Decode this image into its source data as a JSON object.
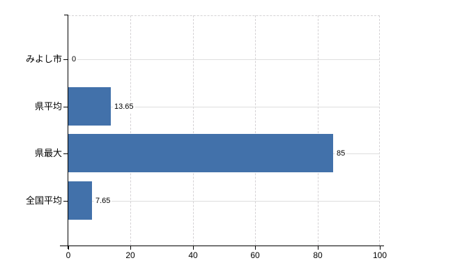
{
  "chart_data": {
    "type": "bar",
    "orientation": "horizontal",
    "title": "",
    "xlabel": "",
    "ylabel": "",
    "categories": [
      "みよし市",
      "県平均",
      "県最大",
      "全国平均"
    ],
    "values": [
      0,
      13.65,
      85,
      7.65
    ],
    "value_labels": [
      "0",
      "13.65",
      "85",
      "7.65"
    ],
    "xlim": [
      0,
      100
    ],
    "x_ticks": [
      "0",
      "20",
      "40",
      "60",
      "80",
      "100"
    ],
    "grid": true,
    "legend": false,
    "colors": {
      "bar": "#4271aa",
      "gridline": "#d4d1d4",
      "gridline_horizontal": "#dedede",
      "axis": "#000000",
      "text": "#000000",
      "background": "#ffffff"
    }
  }
}
